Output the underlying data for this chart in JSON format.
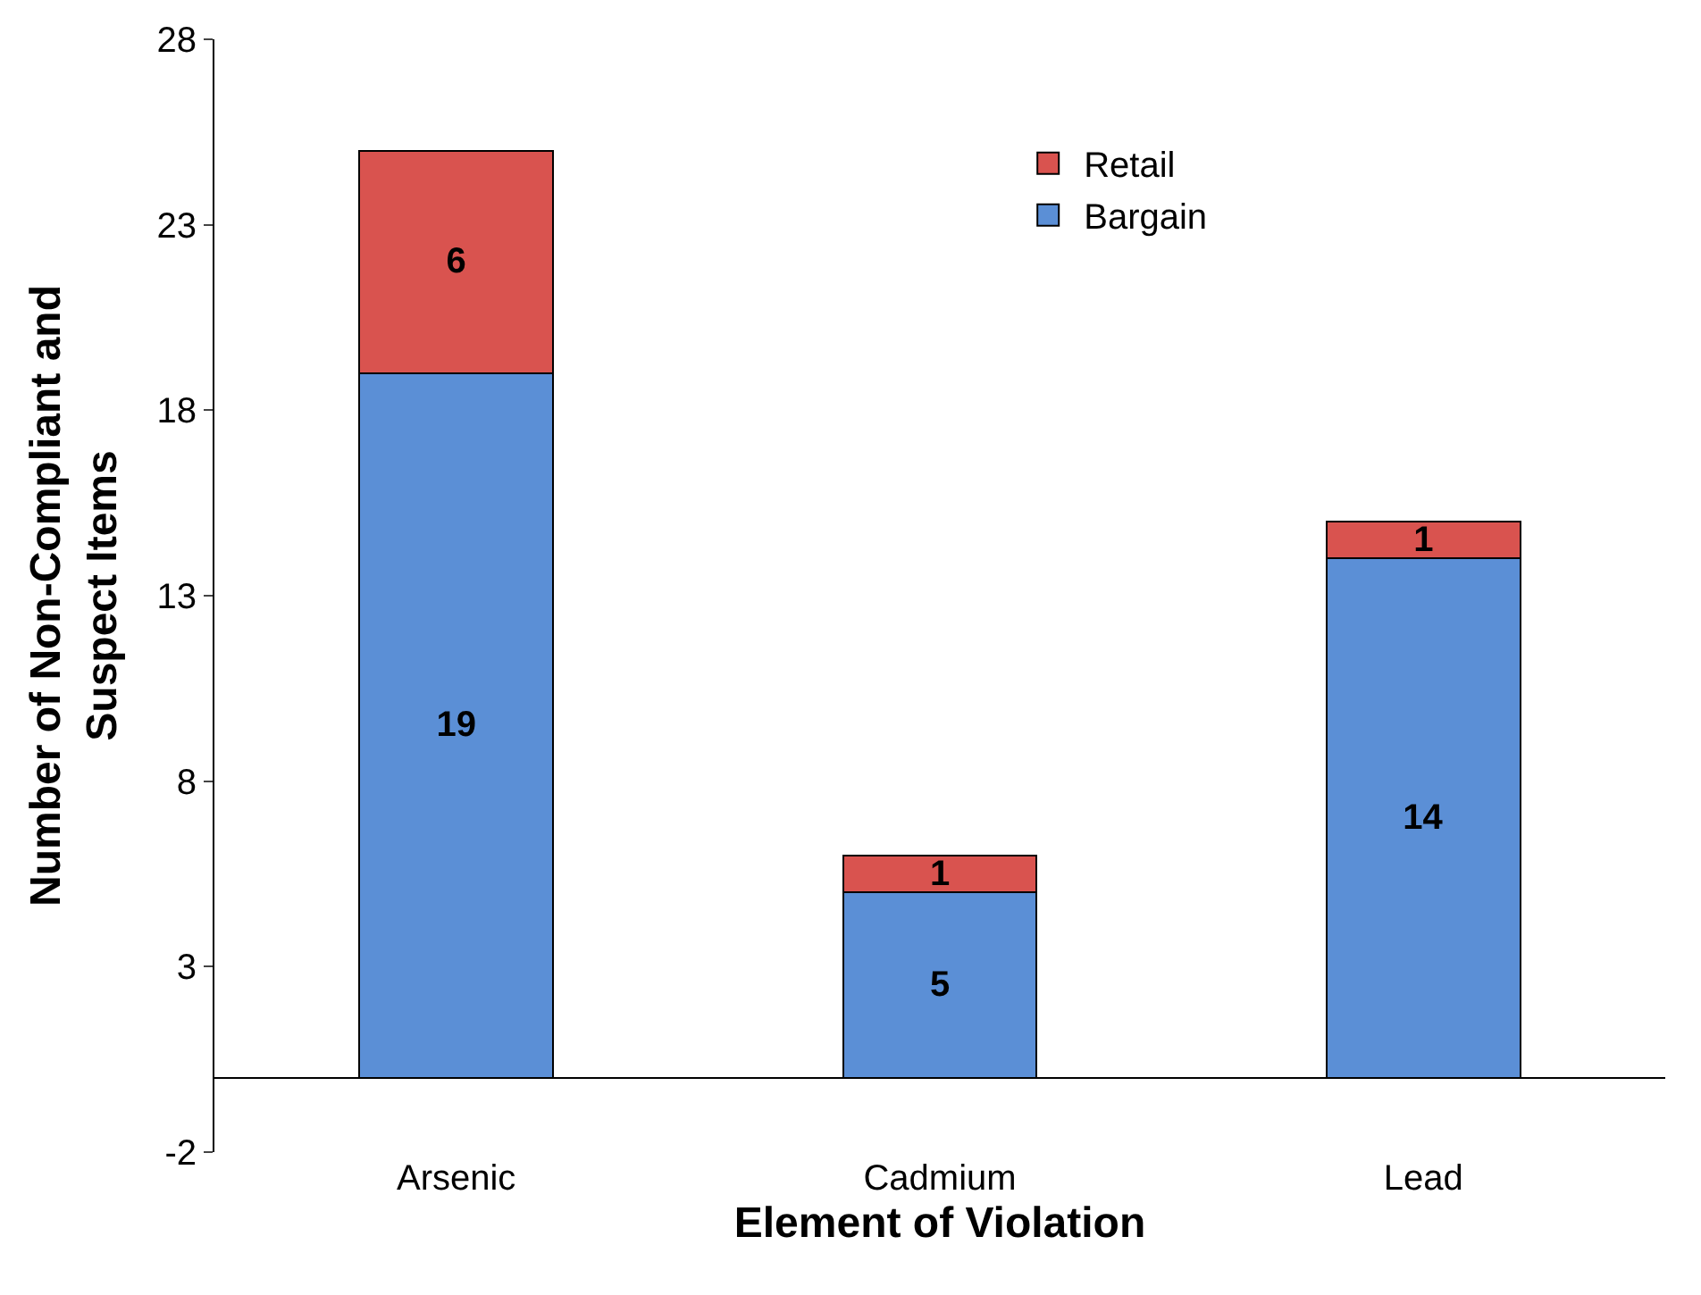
{
  "chart_data": {
    "type": "bar",
    "xlabel": "Element of Violation",
    "ylabel": "Number of Non-Compliant and Suspect Items",
    "categories": [
      "Arsenic",
      "Cadmium",
      "Lead"
    ],
    "series": [
      {
        "name": "Bargain",
        "color": "#5b8fd6",
        "values": [
          19,
          5,
          14
        ]
      },
      {
        "name": "Retail",
        "color": "#d9534f",
        "values": [
          6,
          1,
          1
        ]
      }
    ],
    "stacked": true,
    "data_labels": true,
    "ylim": [
      -2,
      28
    ],
    "yticks": [
      -2,
      3,
      8,
      13,
      18,
      23,
      28
    ],
    "legend": "top right"
  }
}
